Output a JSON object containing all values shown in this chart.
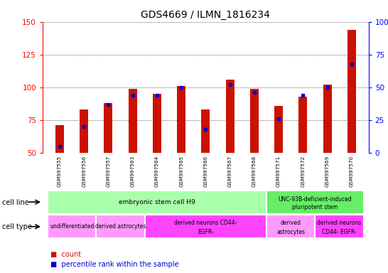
{
  "title": "GDS4669 / ILMN_1816234",
  "samples": [
    "GSM997555",
    "GSM997556",
    "GSM997557",
    "GSM997563",
    "GSM997564",
    "GSM997565",
    "GSM997566",
    "GSM997567",
    "GSM997568",
    "GSM997571",
    "GSM997572",
    "GSM997569",
    "GSM997570"
  ],
  "counts": [
    71,
    83,
    88,
    99,
    95,
    101,
    83,
    106,
    99,
    86,
    93,
    102,
    144
  ],
  "percentiles": [
    5,
    20,
    37,
    44,
    44,
    50,
    18,
    52,
    46,
    26,
    44,
    50,
    68
  ],
  "ylim_left": [
    50,
    150
  ],
  "ylim_right": [
    0,
    100
  ],
  "yticks_left": [
    50,
    75,
    100,
    125,
    150
  ],
  "yticks_right": [
    0,
    25,
    50,
    75,
    100
  ],
  "bar_color": "#cc1100",
  "percentile_color": "#0000cc",
  "grid_color": "#000000",
  "bg_color": "#ffffff",
  "tick_area_color": "#d0d0d0",
  "cell_line_groups": [
    {
      "label": "embryonic stem cell H9",
      "start": 0,
      "end": 9,
      "color": "#aaffaa"
    },
    {
      "label": "UNC-93B-deficient-induced\npluripotent stem",
      "start": 9,
      "end": 13,
      "color": "#66ee66"
    }
  ],
  "cell_type_groups": [
    {
      "label": "undifferentiated",
      "start": 0,
      "end": 2,
      "color": "#ff99ff"
    },
    {
      "label": "derived astrocytes",
      "start": 2,
      "end": 4,
      "color": "#ff99ff"
    },
    {
      "label": "derived neurons CD44-\nEGFR-",
      "start": 4,
      "end": 9,
      "color": "#ff44ff"
    },
    {
      "label": "derived\nastrocytes",
      "start": 9,
      "end": 11,
      "color": "#ff99ff"
    },
    {
      "label": "derived neurons\nCD44- EGFR-",
      "start": 11,
      "end": 13,
      "color": "#ff44ff"
    }
  ],
  "bar_width": 0.35,
  "label_fontsize": 5.5,
  "title_fontsize": 10
}
